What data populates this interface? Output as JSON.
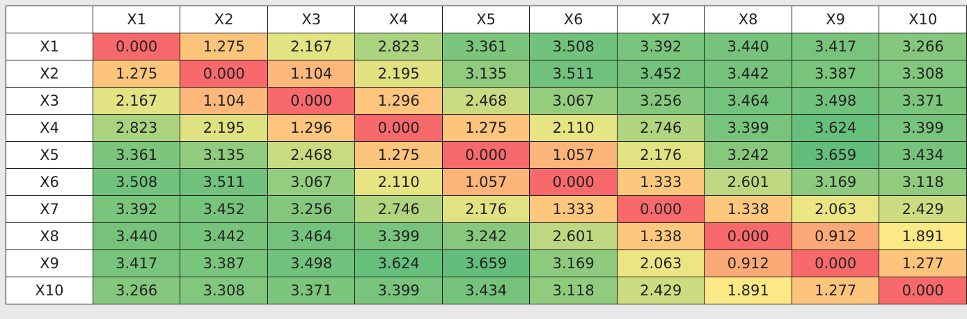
{
  "chart_data": {
    "type": "heatmap",
    "x": [
      "X1",
      "X2",
      "X3",
      "X4",
      "X5",
      "X6",
      "X7",
      "X8",
      "X9",
      "X10"
    ],
    "y": [
      "X1",
      "X2",
      "X3",
      "X4",
      "X5",
      "X6",
      "X7",
      "X8",
      "X9",
      "X10"
    ],
    "values": [
      [
        0.0,
        1.275,
        2.167,
        2.823,
        3.361,
        3.508,
        3.392,
        3.44,
        3.417,
        3.266
      ],
      [
        1.275,
        0.0,
        1.104,
        2.195,
        3.135,
        3.511,
        3.452,
        3.442,
        3.387,
        3.308
      ],
      [
        2.167,
        1.104,
        0.0,
        1.296,
        2.468,
        3.067,
        3.256,
        3.464,
        3.498,
        3.371
      ],
      [
        2.823,
        2.195,
        1.296,
        0.0,
        1.275,
        2.11,
        2.746,
        3.399,
        3.624,
        3.399
      ],
      [
        3.361,
        3.135,
        2.468,
        1.275,
        0.0,
        1.057,
        2.176,
        3.242,
        3.659,
        3.434
      ],
      [
        3.508,
        3.511,
        3.067,
        2.11,
        1.057,
        0.0,
        1.333,
        2.601,
        3.169,
        3.118
      ],
      [
        3.392,
        3.452,
        3.256,
        2.746,
        2.176,
        1.333,
        0.0,
        1.338,
        2.063,
        2.429
      ],
      [
        3.44,
        3.442,
        3.464,
        3.399,
        3.242,
        2.601,
        1.338,
        0.0,
        0.912,
        1.891
      ],
      [
        3.417,
        3.387,
        3.498,
        3.624,
        3.659,
        3.169,
        2.063,
        0.912,
        0.0,
        1.277
      ],
      [
        3.266,
        3.308,
        3.371,
        3.399,
        3.434,
        3.118,
        2.429,
        1.891,
        1.277,
        0.0
      ]
    ],
    "colormap": {
      "low": "#f8696b",
      "mid": "#ffeb84",
      "high": "#63be7b"
    },
    "title": "",
    "xlabel": "",
    "ylabel": ""
  }
}
